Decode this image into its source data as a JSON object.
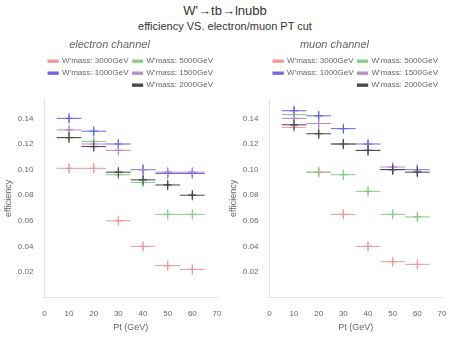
{
  "title": "W'→tb→lnubb",
  "subtitle": "efficiency VS. electron/muon PT cut",
  "chart_data": [
    {
      "type": "scatter",
      "title": "electron channel",
      "xlabel": "Pt (GeV)",
      "ylabel": "efficiency",
      "xlim": [
        0,
        70
      ],
      "ylim": [
        0,
        0.155
      ],
      "xticks": [
        0,
        10,
        20,
        30,
        40,
        50,
        60,
        70
      ],
      "yticks": [
        0.02,
        0.04,
        0.06,
        0.08,
        {
          "value": 0.1,
          "label": "0.10"
        },
        0.12,
        0.14
      ],
      "grid": false,
      "legend": "upper right",
      "marker": "+",
      "x": [
        10,
        20,
        30,
        40,
        50,
        60
      ],
      "series": [
        {
          "name": "W'mass: 3000GeV",
          "color": "#ee9999",
          "values": [
            0.101,
            0.101,
            0.06,
            0.04,
            0.025,
            0.022
          ],
          "xerr": [
            5,
            5,
            5,
            5,
            5,
            5
          ],
          "yerr": [
            0.004,
            0.004,
            0.004,
            0.004,
            0.004,
            0.004
          ]
        },
        {
          "name": "W'mass: 5000GeV",
          "color": "#88cc88",
          "values": [
            0.125,
            0.122,
            0.096,
            0.09,
            0.065,
            0.065
          ],
          "xerr": [
            5,
            5,
            5,
            5,
            5,
            5
          ],
          "yerr": [
            0.004,
            0.004,
            0.004,
            0.004,
            0.004,
            0.004
          ]
        },
        {
          "name": "W'mass: 1000GeV",
          "color": "#6666dd",
          "values": [
            0.14,
            0.13,
            0.12,
            0.1,
            0.097,
            0.097
          ],
          "xerr": [
            5,
            5,
            5,
            5,
            5,
            5
          ],
          "yerr": [
            0.004,
            0.004,
            0.004,
            0.004,
            0.004,
            0.004
          ]
        },
        {
          "name": "W'mass: 1500GeV",
          "color": "#bb88cc",
          "values": [
            0.131,
            0.12,
            0.115,
            0.1,
            0.098,
            0.098
          ],
          "xerr": [
            5,
            5,
            5,
            5,
            5,
            5
          ],
          "yerr": [
            0.004,
            0.004,
            0.004,
            0.004,
            0.004,
            0.004
          ]
        },
        {
          "name": "W'mass: 2000GeV",
          "color": "#444444",
          "values": [
            0.125,
            0.118,
            0.098,
            0.092,
            0.088,
            0.08
          ],
          "xerr": [
            5,
            5,
            5,
            5,
            5,
            5
          ],
          "yerr": [
            0.004,
            0.004,
            0.004,
            0.004,
            0.004,
            0.004
          ]
        }
      ]
    },
    {
      "type": "scatter",
      "title": "muon channel",
      "xlabel": "Pt (GeV)",
      "ylabel": "efficiency",
      "xlim": [
        0,
        70
      ],
      "ylim": [
        0,
        0.155
      ],
      "xticks": [
        0,
        10,
        20,
        30,
        40,
        50,
        60,
        70
      ],
      "yticks": [
        0.02,
        0.04,
        0.06,
        0.08,
        {
          "value": 0.1,
          "label": "0.10"
        },
        0.12,
        0.14
      ],
      "grid": false,
      "legend": "upper right",
      "marker": "+",
      "x": [
        10,
        20,
        30,
        40,
        50,
        60
      ],
      "series": [
        {
          "name": "W'mass: 3000GeV",
          "color": "#ee9999",
          "values": [
            0.133,
            0.098,
            0.065,
            0.04,
            0.028,
            0.026
          ],
          "xerr": [
            5,
            5,
            5,
            5,
            5,
            5
          ],
          "yerr": [
            0.004,
            0.004,
            0.004,
            0.004,
            0.004,
            0.004
          ]
        },
        {
          "name": "W'mass: 5000GeV",
          "color": "#88cc88",
          "values": [
            0.143,
            0.098,
            0.096,
            0.083,
            0.065,
            0.063
          ],
          "xerr": [
            5,
            5,
            5,
            5,
            5,
            5
          ],
          "yerr": [
            0.004,
            0.004,
            0.004,
            0.004,
            0.004,
            0.004
          ]
        },
        {
          "name": "W'mass: 1000GeV",
          "color": "#6666dd",
          "values": [
            0.146,
            0.142,
            0.132,
            0.12,
            0.1,
            0.1
          ],
          "xerr": [
            5,
            5,
            5,
            5,
            5,
            5
          ],
          "yerr": [
            0.004,
            0.004,
            0.004,
            0.004,
            0.004,
            0.004
          ]
        },
        {
          "name": "W'mass: 1500GeV",
          "color": "#bb88cc",
          "values": [
            0.14,
            0.136,
            0.12,
            0.115,
            0.102,
            0.1
          ],
          "xerr": [
            5,
            5,
            5,
            5,
            5,
            5
          ],
          "yerr": [
            0.004,
            0.004,
            0.004,
            0.004,
            0.004,
            0.004
          ]
        },
        {
          "name": "W'mass: 2000GeV",
          "color": "#444444",
          "values": [
            0.135,
            0.128,
            0.12,
            0.115,
            0.1,
            0.098
          ],
          "xerr": [
            5,
            5,
            5,
            5,
            5,
            5
          ],
          "yerr": [
            0.004,
            0.004,
            0.004,
            0.004,
            0.004,
            0.004
          ]
        }
      ]
    }
  ]
}
